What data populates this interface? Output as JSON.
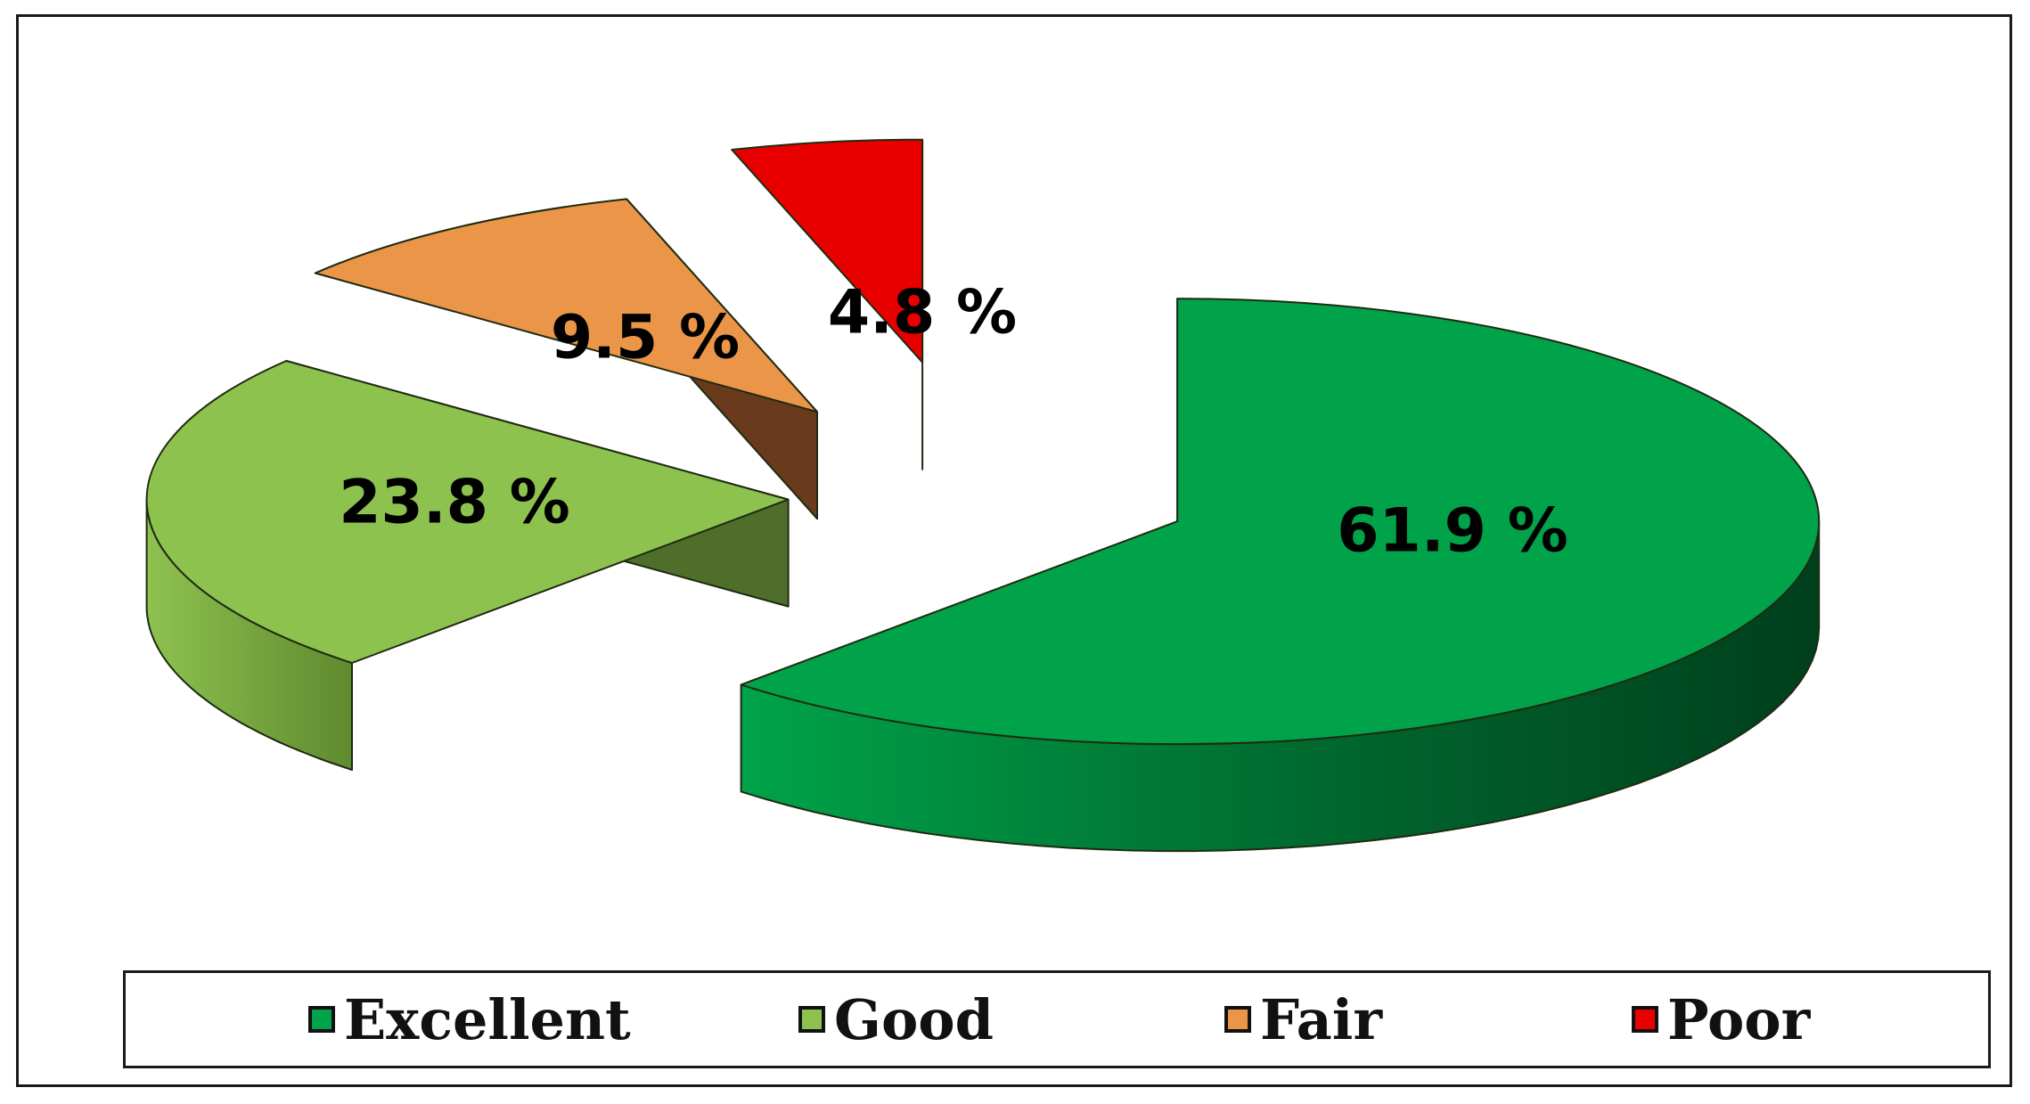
{
  "chart_data": {
    "type": "pie",
    "title": "",
    "categories": [
      "Excellent",
      "Good",
      "Fair",
      "Poor"
    ],
    "values": [
      61.9,
      23.8,
      9.5,
      4.8
    ],
    "labels": [
      "61.9 %",
      "23.8 %",
      "9.5 %",
      "4.8 %"
    ],
    "colors": [
      "#00a34a",
      "#8ec24f",
      "#ea9548",
      "#e80000"
    ],
    "side_colors": [
      "#00672d",
      "#4e6e2a",
      "#6a3a1c",
      "#6b0000"
    ],
    "legend_position": "bottom",
    "style": "3d-exploded"
  }
}
